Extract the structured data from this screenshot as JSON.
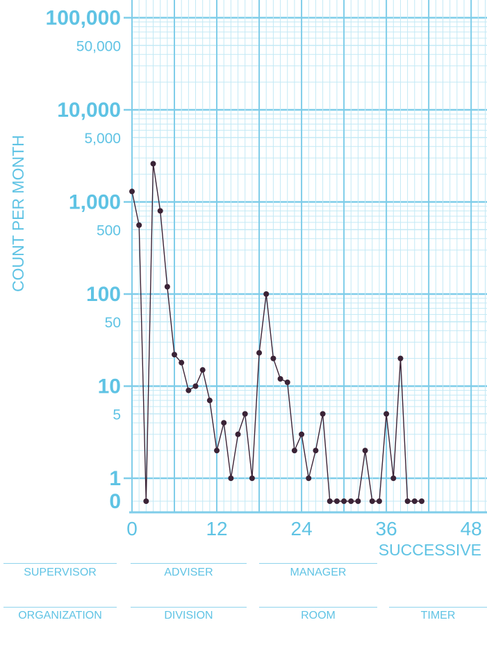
{
  "chart_data": {
    "type": "line",
    "scale": "logarithmic (0 shown at bottom)",
    "ylabel": "COUNT PER MONTH",
    "xlabel": "SUCCESSIVE",
    "y_ticks_major": [
      "100,000",
      "10,000",
      "1,000",
      "100",
      "10",
      "1",
      "0"
    ],
    "y_ticks_minor": [
      "50,000",
      "5,000",
      "500",
      "50",
      "5"
    ],
    "x_ticks": [
      "0",
      "12",
      "24",
      "36",
      "48"
    ],
    "xlim": [
      0,
      50
    ],
    "grid": true,
    "series": [
      {
        "color": "#3a2336",
        "x": [
          0,
          1,
          2,
          3,
          4,
          5,
          6,
          7,
          8,
          9,
          10,
          11,
          12,
          13,
          14,
          15,
          16,
          17,
          18,
          19,
          20,
          21,
          22,
          23,
          24,
          25,
          26,
          27,
          28,
          29,
          30,
          31,
          32,
          33,
          34,
          35,
          36,
          37,
          38,
          39,
          40,
          41
        ],
        "y": [
          1300,
          560,
          0,
          2600,
          800,
          120,
          22,
          18,
          9,
          10,
          15,
          7,
          2,
          4,
          1,
          3,
          5,
          1,
          23,
          100,
          20,
          12,
          11,
          2,
          3,
          1,
          2,
          5,
          0,
          0,
          0,
          0,
          0,
          2,
          0,
          0,
          5,
          1,
          20,
          0,
          0,
          0
        ]
      }
    ]
  },
  "footer": {
    "row1": [
      "SUPERVISOR",
      "ADVISER",
      "MANAGER"
    ],
    "row2": [
      "ORGANIZATION",
      "DIVISION",
      "ROOM",
      "TIMER"
    ]
  }
}
